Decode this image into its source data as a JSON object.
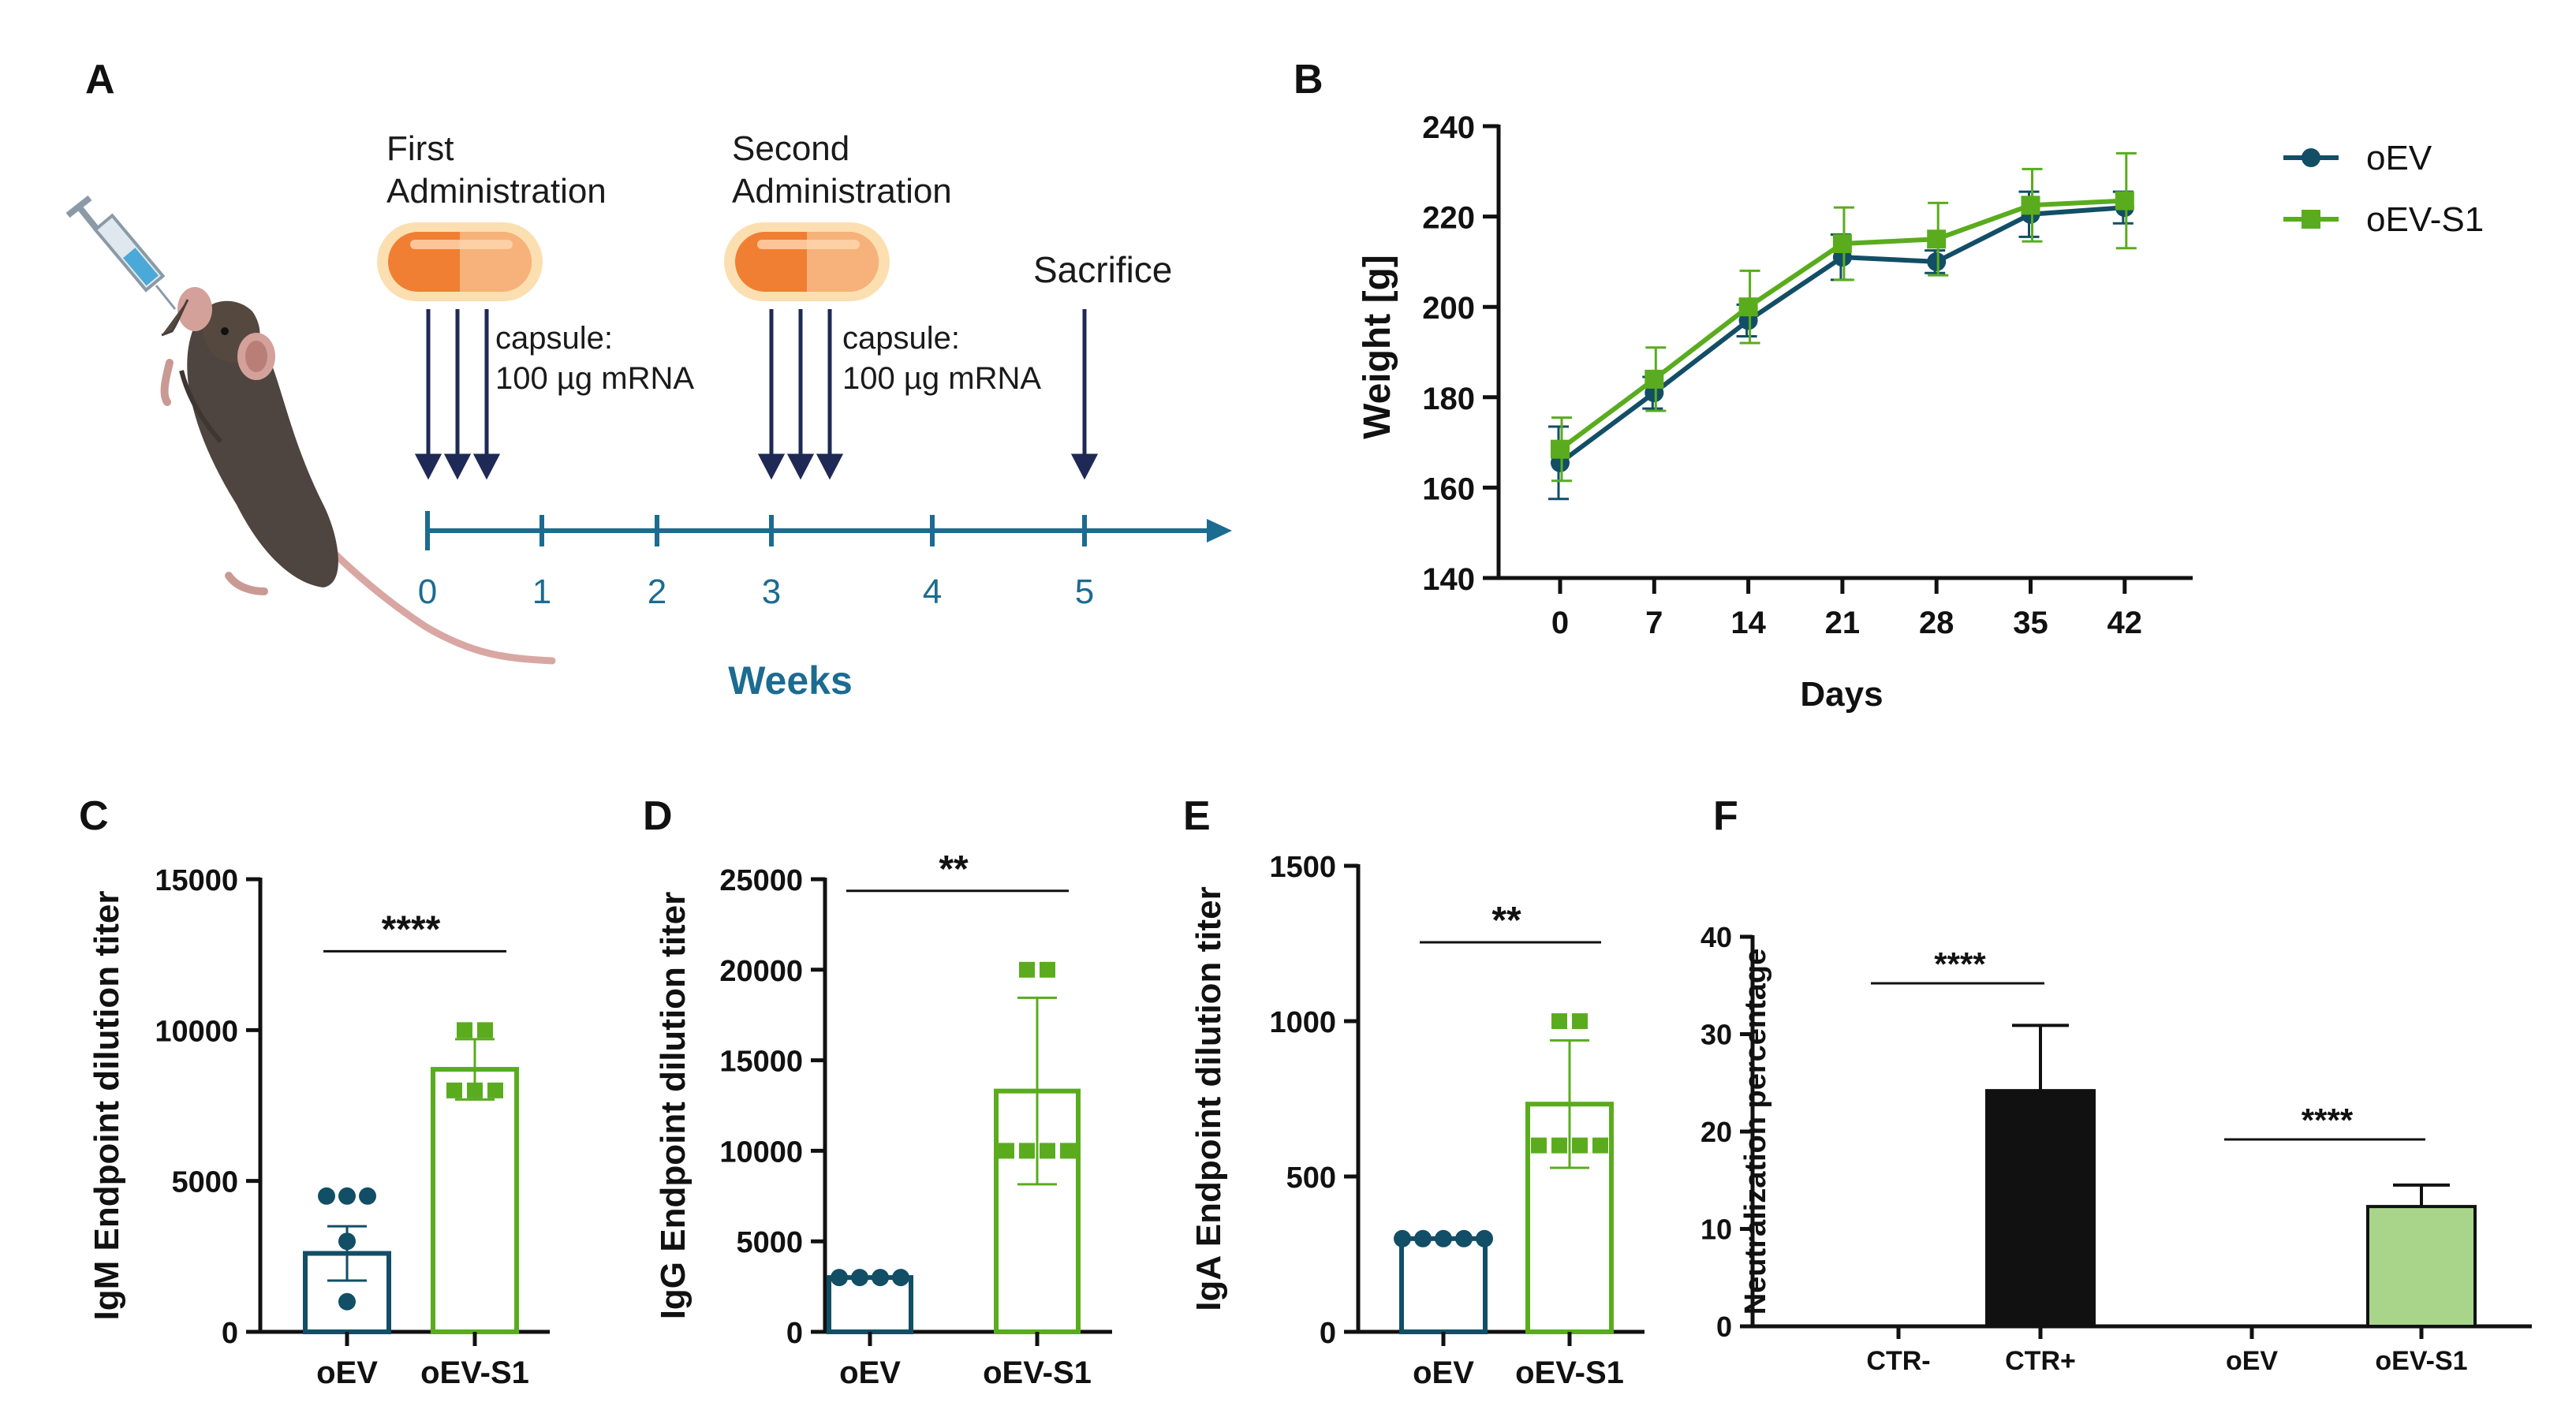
{
  "colors": {
    "oEV": "#124e66",
    "oEV_S1": "#5aac1e",
    "timeline": "#1c6b91",
    "arrow": "#1e2a55",
    "black": "#111111",
    "light_green": "#a8d58a",
    "capsule": "#f28a3c"
  },
  "panel_labels": {
    "a": "A",
    "b": "B",
    "c": "C",
    "d": "D",
    "e": "E",
    "f": "F"
  },
  "timeline": {
    "first_line1": "First",
    "first_line2": "Administration",
    "second_line1": "Second",
    "second_line2": "Administration",
    "capsule_line1": "capsule:",
    "capsule_line2": "100 µg mRNA",
    "sacrifice": "Sacrifice",
    "axis_label": "Weeks",
    "ticks": [
      "0",
      "1",
      "2",
      "3",
      "4",
      "5"
    ],
    "icons": [
      "mouse-icon",
      "syringe-icon",
      "capsule-icon"
    ]
  },
  "chart_data": [
    {
      "id": "B",
      "type": "line",
      "xlabel": "Days",
      "ylabel": "Weight [g]",
      "x": [
        0,
        7,
        14,
        21,
        28,
        35,
        42
      ],
      "xtick_labels": [
        "0",
        "7",
        "14",
        "21",
        "28",
        "35",
        "42"
      ],
      "ylim": [
        140,
        240
      ],
      "yticks": [
        140,
        160,
        180,
        200,
        220,
        240
      ],
      "legend_position": "top-right",
      "series": [
        {
          "name": "oEV",
          "marker": "circle",
          "values": [
            165.5,
            181,
            197,
            211,
            210,
            220.5,
            222
          ],
          "err": [
            8,
            3.5,
            3.5,
            5,
            2.5,
            5,
            3.5
          ]
        },
        {
          "name": "oEV-S1",
          "marker": "square",
          "values": [
            168.5,
            184,
            200,
            214,
            215,
            222.5,
            223.5
          ],
          "err": [
            7,
            7,
            8,
            8,
            8,
            8,
            10.5
          ]
        }
      ]
    },
    {
      "id": "C",
      "type": "bar",
      "ylabel": "IgM Endpoint dilution titer",
      "categories": [
        "oEV",
        "oEV-S1"
      ],
      "ylim": [
        0,
        15000
      ],
      "yticks": [
        0,
        5000,
        10000,
        15000
      ],
      "ytick_labels": [
        "0",
        "5000",
        "10000",
        "15000"
      ],
      "bar_style": "outline",
      "values": [
        2600,
        8700
      ],
      "err": [
        900,
        1000
      ],
      "points": [
        [
          4500,
          4500,
          4500,
          3000,
          1000
        ],
        [
          10000,
          10000,
          8000,
          8000,
          8000
        ]
      ],
      "significance": [
        {
          "label": "****",
          "from": 0,
          "to": 1
        }
      ]
    },
    {
      "id": "D",
      "type": "bar",
      "ylabel": "IgG Endpoint dilution titer",
      "categories": [
        "oEV",
        "oEV-S1"
      ],
      "ylim": [
        0,
        25000
      ],
      "yticks": [
        0,
        5000,
        10000,
        15000,
        20000,
        25000
      ],
      "ytick_labels": [
        "0",
        "5000",
        "10000",
        "15000",
        "20000",
        "25000"
      ],
      "bar_style": "outline",
      "values": [
        3000,
        13300
      ],
      "err": [
        0,
        5150
      ],
      "points": [
        [
          3000,
          3000,
          3000,
          3000
        ],
        [
          20000,
          20000,
          10000,
          10000,
          10000,
          10000
        ]
      ],
      "significance": [
        {
          "label": "**",
          "from": 0,
          "to": 1
        }
      ]
    },
    {
      "id": "E",
      "type": "bar",
      "ylabel": "IgA Endpoint dilution titer",
      "categories": [
        "oEV",
        "oEV-S1"
      ],
      "ylim": [
        0,
        1500
      ],
      "yticks": [
        0,
        500,
        1000,
        1500
      ],
      "ytick_labels": [
        "0",
        "500",
        "1000",
        "1500"
      ],
      "bar_style": "outline",
      "values": [
        300,
        733
      ],
      "err": [
        0,
        205
      ],
      "points": [
        [
          300,
          300,
          300,
          300,
          300
        ],
        [
          1000,
          1000,
          600,
          600,
          600,
          600
        ]
      ],
      "significance": [
        {
          "label": "**",
          "from": 0,
          "to": 1
        }
      ]
    },
    {
      "id": "F",
      "type": "bar",
      "ylabel": "Neutralization percentage",
      "categories": [
        "CTR-",
        "CTR+",
        "oEV",
        "oEV-S1"
      ],
      "ylim": [
        0,
        40
      ],
      "yticks": [
        0,
        10,
        20,
        30,
        40
      ],
      "ytick_labels": [
        "0",
        "10",
        "20",
        "30",
        "40"
      ],
      "bar_style": "filled",
      "values": [
        0,
        24.2,
        0,
        12.3
      ],
      "err": [
        0,
        6.7,
        0,
        2.2
      ],
      "bar_colors": [
        "#111111",
        "#111111",
        "#a8d58a",
        "#a8d58a"
      ],
      "significance": [
        {
          "label": "****",
          "from": 0,
          "to": 1
        },
        {
          "label": "****",
          "from": 2,
          "to": 3
        }
      ]
    }
  ]
}
